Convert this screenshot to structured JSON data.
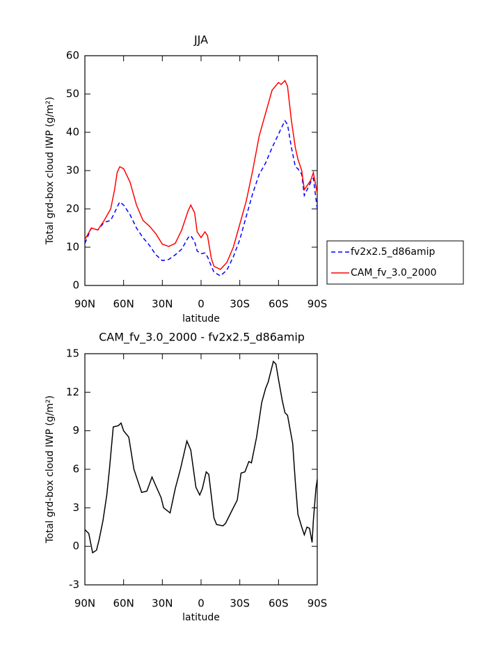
{
  "chart_data": [
    {
      "type": "line",
      "title": "JJA",
      "xlabel": "latitude",
      "ylabel": "Total grd-box cloud IWP (g/m²)",
      "x": [
        90,
        85,
        80,
        75,
        70,
        67,
        65,
        63,
        60,
        55,
        50,
        45,
        40,
        35,
        30,
        25,
        20,
        15,
        10,
        8,
        5,
        3,
        0,
        -3,
        -5,
        -8,
        -10,
        -15,
        -20,
        -25,
        -30,
        -35,
        -40,
        -45,
        -50,
        -55,
        -60,
        -62,
        -65,
        -67,
        -70,
        -73,
        -75,
        -78,
        -80,
        -85,
        -87,
        -90
      ],
      "series": [
        {
          "name": "fv2x2.5_d86amip",
          "color": "#0000ff",
          "linestyle": "dashed",
          "values": [
            11,
            15,
            14.5,
            16.5,
            17,
            19,
            20.5,
            21.8,
            21,
            18.5,
            15,
            12.5,
            10.5,
            8,
            6.5,
            6.8,
            8,
            9.5,
            12.5,
            13,
            11.5,
            9,
            8.3,
            8.5,
            7.5,
            5,
            3.5,
            2.5,
            4,
            7.5,
            12,
            18,
            24,
            29,
            32,
            36,
            39.5,
            41,
            43,
            42,
            36,
            31,
            30.5,
            29,
            23.5,
            27,
            28,
            20
          ]
        },
        {
          "name": "CAM_fv_3.0_2000",
          "color": "#ff0000",
          "linestyle": "solid",
          "values": [
            12,
            15,
            14.5,
            17,
            20,
            25,
            29.5,
            31,
            30.5,
            27,
            21,
            17,
            15.5,
            13.5,
            10.8,
            10.2,
            11,
            14.5,
            19.5,
            21,
            19,
            14,
            12.5,
            14,
            13,
            7,
            5,
            4.2,
            6,
            10,
            16,
            22,
            30,
            39,
            45,
            51,
            53,
            52.5,
            53.5,
            52,
            43,
            36,
            33,
            30,
            25,
            27.5,
            29.5,
            24
          ]
        }
      ],
      "xlim": [
        90,
        -90
      ],
      "xticks": [
        {
          "value": 90,
          "label": "90N"
        },
        {
          "value": 60,
          "label": "60N"
        },
        {
          "value": 30,
          "label": "30N"
        },
        0,
        {
          "value": -30,
          "label": "30S"
        },
        {
          "value": -60,
          "label": "60S"
        },
        {
          "value": -90,
          "label": "90S"
        }
      ],
      "ylim": [
        0,
        60
      ],
      "yticks": [
        0,
        10,
        20,
        30,
        40,
        50,
        60
      ],
      "legend": "right"
    },
    {
      "type": "line",
      "title": "CAM_fv_3.0_2000 - fv2x2.5_d86amip",
      "xlabel": "latitude",
      "ylabel": "Total grd-box cloud IWP (g/m²)",
      "x": [
        90,
        87,
        84,
        81,
        79,
        76,
        73,
        71,
        68,
        64,
        62,
        60,
        56,
        52,
        46,
        42,
        38,
        35,
        31,
        29,
        24,
        20,
        16,
        11,
        8,
        4,
        1,
        -1,
        -4,
        -6,
        -10,
        -12,
        -17,
        -19,
        -24,
        -28,
        -31,
        -34,
        -37,
        -39,
        -43,
        -47,
        -50,
        -52,
        -56,
        -58,
        -60,
        -63,
        -65,
        -67,
        -71,
        -73,
        -75,
        -78,
        -80,
        -82,
        -84,
        -86,
        -87,
        -89,
        -90
      ],
      "color": "#000000",
      "values": [
        1.3,
        1,
        -0.5,
        -0.3,
        0.5,
        2,
        4,
        6,
        9.3,
        9.4,
        9.6,
        9,
        8.5,
        6,
        4.2,
        4.3,
        5.4,
        4.7,
        3.8,
        3,
        2.6,
        4.5,
        6,
        8.2,
        7.5,
        4.6,
        4,
        4.5,
        5.8,
        5.6,
        2.2,
        1.7,
        1.6,
        1.8,
        2.8,
        3.6,
        5.7,
        5.8,
        6.6,
        6.5,
        8.5,
        11.2,
        12.3,
        12.8,
        14.4,
        14.2,
        13,
        11.3,
        10.4,
        10.2,
        8,
        5,
        2.5,
        1.5,
        0.9,
        1.5,
        1.4,
        0.3,
        2,
        4.5,
        5.2
      ],
      "xlim": [
        90,
        -90
      ],
      "xticks": [
        {
          "value": 90,
          "label": "90N"
        },
        {
          "value": 60,
          "label": "60N"
        },
        {
          "value": 30,
          "label": "30N"
        },
        0,
        {
          "value": -30,
          "label": "30S"
        },
        {
          "value": -60,
          "label": "60S"
        },
        {
          "value": -90,
          "label": "90S"
        }
      ],
      "ylim": [
        -3,
        15
      ],
      "yticks": [
        -3,
        0,
        3,
        6,
        9,
        12,
        15
      ]
    }
  ]
}
